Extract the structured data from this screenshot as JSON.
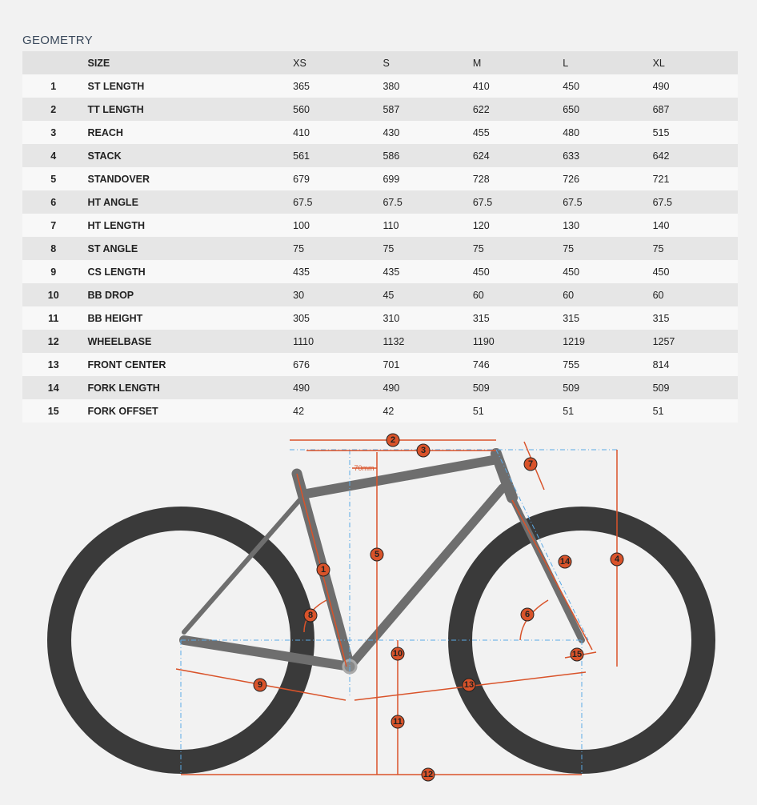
{
  "title": "GEOMETRY",
  "table": {
    "header": [
      "SIZE",
      "XS",
      "S",
      "M",
      "L",
      "XL"
    ],
    "rows": [
      [
        1,
        "ST LENGTH",
        365,
        380,
        410,
        450,
        490
      ],
      [
        2,
        "TT LENGTH",
        560,
        587,
        622,
        650,
        687
      ],
      [
        3,
        "REACH",
        410,
        430,
        455,
        480,
        515
      ],
      [
        4,
        "STACK",
        561,
        586,
        624,
        633,
        642
      ],
      [
        5,
        "STANDOVER",
        679,
        699,
        728,
        726,
        721
      ],
      [
        6,
        "HT ANGLE",
        67.5,
        67.5,
        67.5,
        67.5,
        67.5
      ],
      [
        7,
        "HT LENGTH",
        100,
        110,
        120,
        130,
        140
      ],
      [
        8,
        "ST ANGLE",
        75,
        75,
        75,
        75,
        75
      ],
      [
        9,
        "CS LENGTH",
        435,
        435,
        450,
        450,
        450
      ],
      [
        10,
        "BB DROP",
        30,
        45,
        60,
        60,
        60
      ],
      [
        11,
        "BB HEIGHT",
        305,
        310,
        315,
        315,
        315
      ],
      [
        12,
        "WHEELBASE",
        1110,
        1132,
        1190,
        1219,
        1257
      ],
      [
        13,
        "FRONT CENTER",
        676,
        701,
        746,
        755,
        814
      ],
      [
        14,
        "FORK LENGTH",
        490,
        490,
        509,
        509,
        509
      ],
      [
        15,
        "FORK OFFSET",
        42,
        42,
        51,
        51,
        51
      ]
    ]
  },
  "diagram": {
    "markers": [
      "1",
      "2",
      "3",
      "4",
      "5",
      "6",
      "7",
      "8",
      "9",
      "10",
      "11",
      "12",
      "13",
      "14",
      "15"
    ],
    "offset_label": "70mm"
  }
}
